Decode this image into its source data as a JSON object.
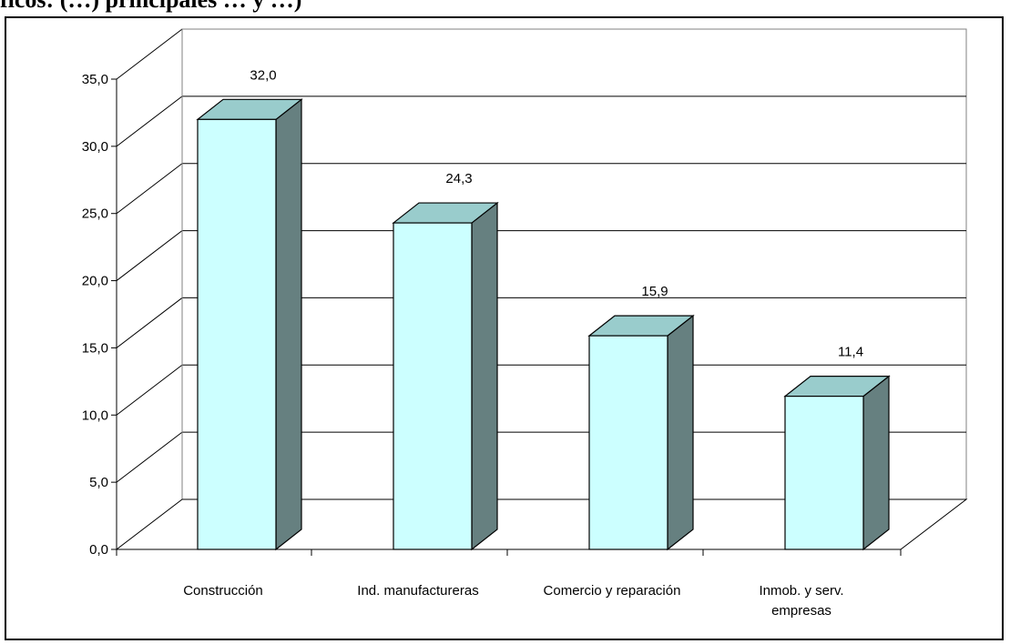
{
  "title": "ficos: (…) principales … y …)",
  "chart_data": {
    "type": "bar",
    "title": "",
    "xlabel": "",
    "ylabel": "",
    "categories": [
      [
        "Construcción"
      ],
      [
        "Ind. manufactureras"
      ],
      [
        "Comercio y reparación"
      ],
      [
        "Inmob. y serv.",
        "empresas"
      ]
    ],
    "values": [
      32.0,
      24.3,
      15.9,
      11.4
    ],
    "value_labels": [
      "32,0",
      "24,3",
      "15,9",
      "11,4"
    ],
    "ylim": [
      0,
      35
    ],
    "yticks": [
      0,
      5,
      10,
      15,
      20,
      25,
      30,
      35
    ],
    "ytick_labels": [
      "0,0",
      "5,0",
      "10,0",
      "15,0",
      "20,0",
      "25,0",
      "30,0",
      "35,0"
    ],
    "grid": true,
    "legend": "none",
    "style": "3d-bar",
    "colors": {
      "bar_front": "#ccffff",
      "bar_top": "#99cccc",
      "bar_side": "#668080",
      "grid": "#000000",
      "background": "#ffffff"
    }
  }
}
